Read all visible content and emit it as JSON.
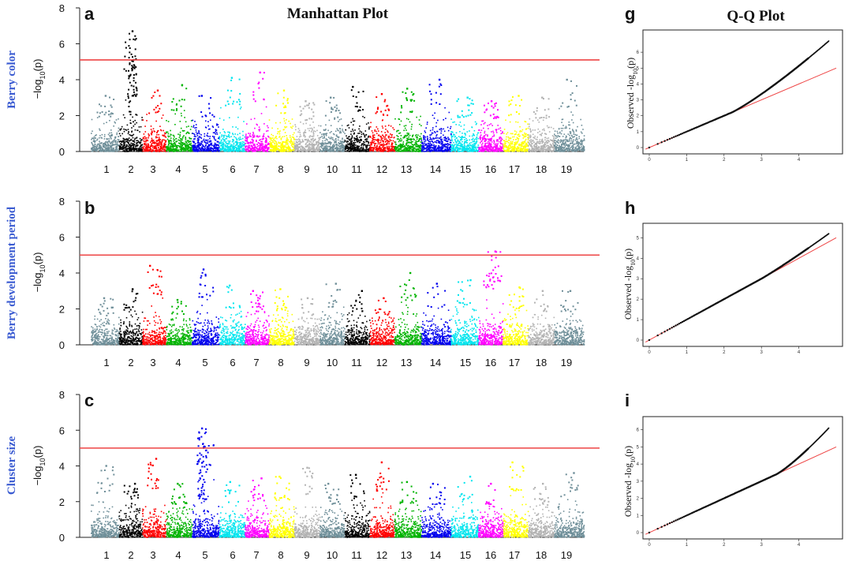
{
  "figure": {
    "manhattan_title": "Manhattan Plot",
    "qq_title": "Q-Q Plot",
    "manhattan_ylabel_prefix": "−log",
    "manhattan_ylabel_sub": "10",
    "manhattan_ylabel_suffix": "(p)",
    "qq_ylabel_prefix": "Observed -log",
    "qq_ylabel_sub": "10",
    "qq_ylabel_suffix": "(p)"
  },
  "colors": {
    "palette": [
      "#6f8f99",
      "#000000",
      "#ff0000",
      "#00b300",
      "#0000ee",
      "#00e5ee",
      "#ff00ff",
      "#ffff00",
      "#b3b3b3"
    ],
    "threshold": "#ee4444",
    "qq_line": "#ee4444",
    "trait_label": "#3a5bd1"
  },
  "chart_data": [
    {
      "type": "scatter",
      "subtype": "manhattan",
      "panel": "a",
      "trait": "Berry color",
      "ylim": [
        0,
        8
      ],
      "yticks": [
        "0",
        "2",
        "4",
        "6",
        "8"
      ],
      "categories": [
        "1",
        "2",
        "3",
        "4",
        "5",
        "6",
        "7",
        "8",
        "9",
        "10",
        "11",
        "12",
        "13",
        "14",
        "15",
        "16",
        "17",
        "18",
        "19"
      ],
      "threshold": 5.1,
      "max_by_chromosome": [
        3.1,
        6.7,
        3.4,
        3.7,
        3.1,
        4.1,
        4.4,
        3.4,
        2.8,
        3.0,
        3.6,
        3.2,
        3.5,
        4.0,
        3.0,
        2.8,
        3.1,
        3.0,
        4.0
      ]
    },
    {
      "type": "scatter",
      "subtype": "manhattan",
      "panel": "b",
      "trait": "Berry development period",
      "ylim": [
        0,
        8
      ],
      "yticks": [
        "0",
        "2",
        "4",
        "6",
        "8"
      ],
      "categories": [
        "1",
        "2",
        "3",
        "4",
        "5",
        "6",
        "7",
        "8",
        "9",
        "10",
        "11",
        "12",
        "13",
        "14",
        "15",
        "16",
        "17",
        "18",
        "19"
      ],
      "threshold": 5.0,
      "max_by_chromosome": [
        2.6,
        3.1,
        4.4,
        2.5,
        4.2,
        3.3,
        3.0,
        3.1,
        2.6,
        3.4,
        3.0,
        2.6,
        4.0,
        3.4,
        3.6,
        5.2,
        3.2,
        3.0,
        3.0
      ]
    },
    {
      "type": "scatter",
      "subtype": "manhattan",
      "panel": "c",
      "trait": "Cluster size",
      "ylim": [
        0,
        8
      ],
      "yticks": [
        "0",
        "2",
        "4",
        "6",
        "8"
      ],
      "categories": [
        "1",
        "2",
        "3",
        "4",
        "5",
        "6",
        "7",
        "8",
        "9",
        "10",
        "11",
        "12",
        "13",
        "14",
        "15",
        "16",
        "17",
        "18",
        "19"
      ],
      "threshold": 5.0,
      "max_by_chromosome": [
        4.0,
        3.0,
        4.4,
        3.0,
        6.1,
        3.1,
        3.3,
        3.4,
        3.9,
        3.0,
        3.5,
        4.2,
        3.1,
        3.0,
        3.4,
        3.0,
        4.2,
        3.0,
        3.6
      ]
    },
    {
      "type": "scatter",
      "subtype": "qq",
      "panel": "g",
      "xlim": [
        0,
        5
      ],
      "ylim": [
        0,
        7
      ],
      "xticks": [
        "0",
        "1",
        "2",
        "3",
        "4"
      ],
      "yticks": [
        "0",
        "1",
        "2",
        "3",
        "4",
        "5",
        "6"
      ],
      "max_expected": 4.8,
      "max_observed": 6.7,
      "inflation_start": 2.2
    },
    {
      "type": "scatter",
      "subtype": "qq",
      "panel": "h",
      "xlim": [
        0,
        5
      ],
      "ylim": [
        0,
        5.4
      ],
      "xticks": [
        "0",
        "1",
        "2",
        "3",
        "4"
      ],
      "yticks": [
        "0",
        "1",
        "2",
        "3",
        "4",
        "5"
      ],
      "max_expected": 4.8,
      "max_observed": 5.2,
      "inflation_start": 3.0
    },
    {
      "type": "scatter",
      "subtype": "qq",
      "panel": "i",
      "xlim": [
        0,
        5
      ],
      "ylim": [
        0,
        6.4
      ],
      "xticks": [
        "0",
        "1",
        "2",
        "3",
        "4"
      ],
      "yticks": [
        "0",
        "1",
        "2",
        "3",
        "4",
        "5",
        "6"
      ],
      "max_expected": 4.8,
      "max_observed": 6.1,
      "inflation_start": 3.4
    }
  ]
}
